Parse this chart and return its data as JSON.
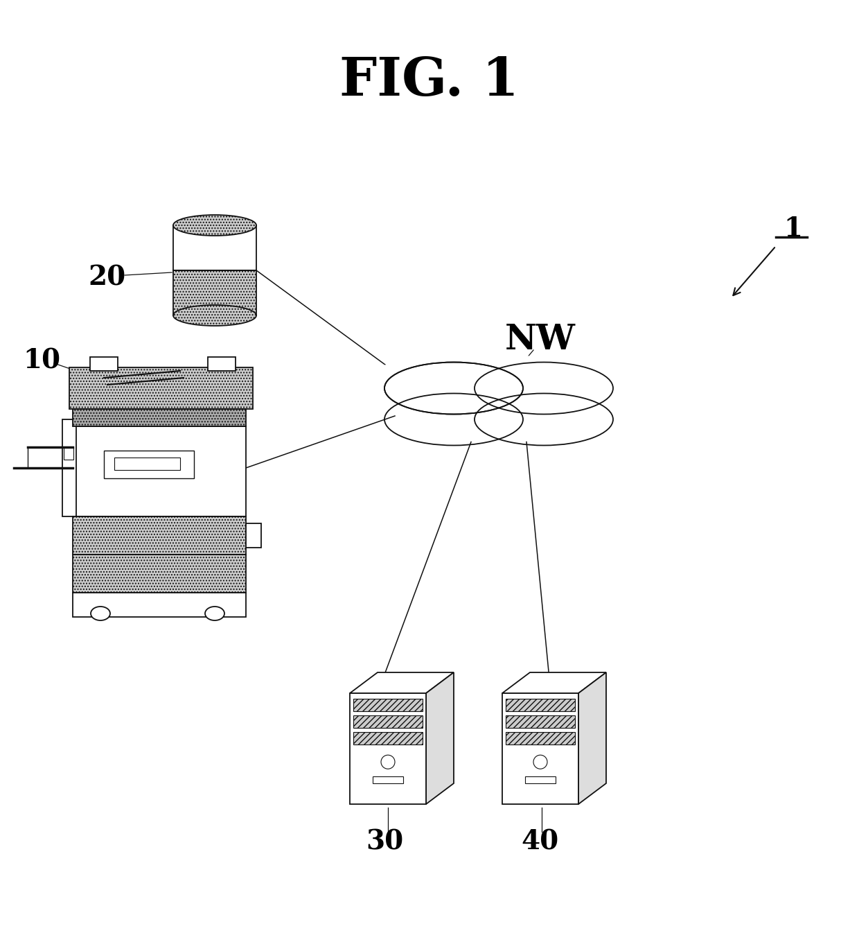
{
  "title": "FIG. 1",
  "bg_color": "#ffffff",
  "label_10": "10",
  "label_20": "20",
  "label_30": "30",
  "label_40": "40",
  "label_NW": "NW",
  "label_1": "1",
  "black": "#111111",
  "gray_light": "#cccccc",
  "gray_mid": "#aaaaaa",
  "hatch_gray": "#bbbbbb"
}
